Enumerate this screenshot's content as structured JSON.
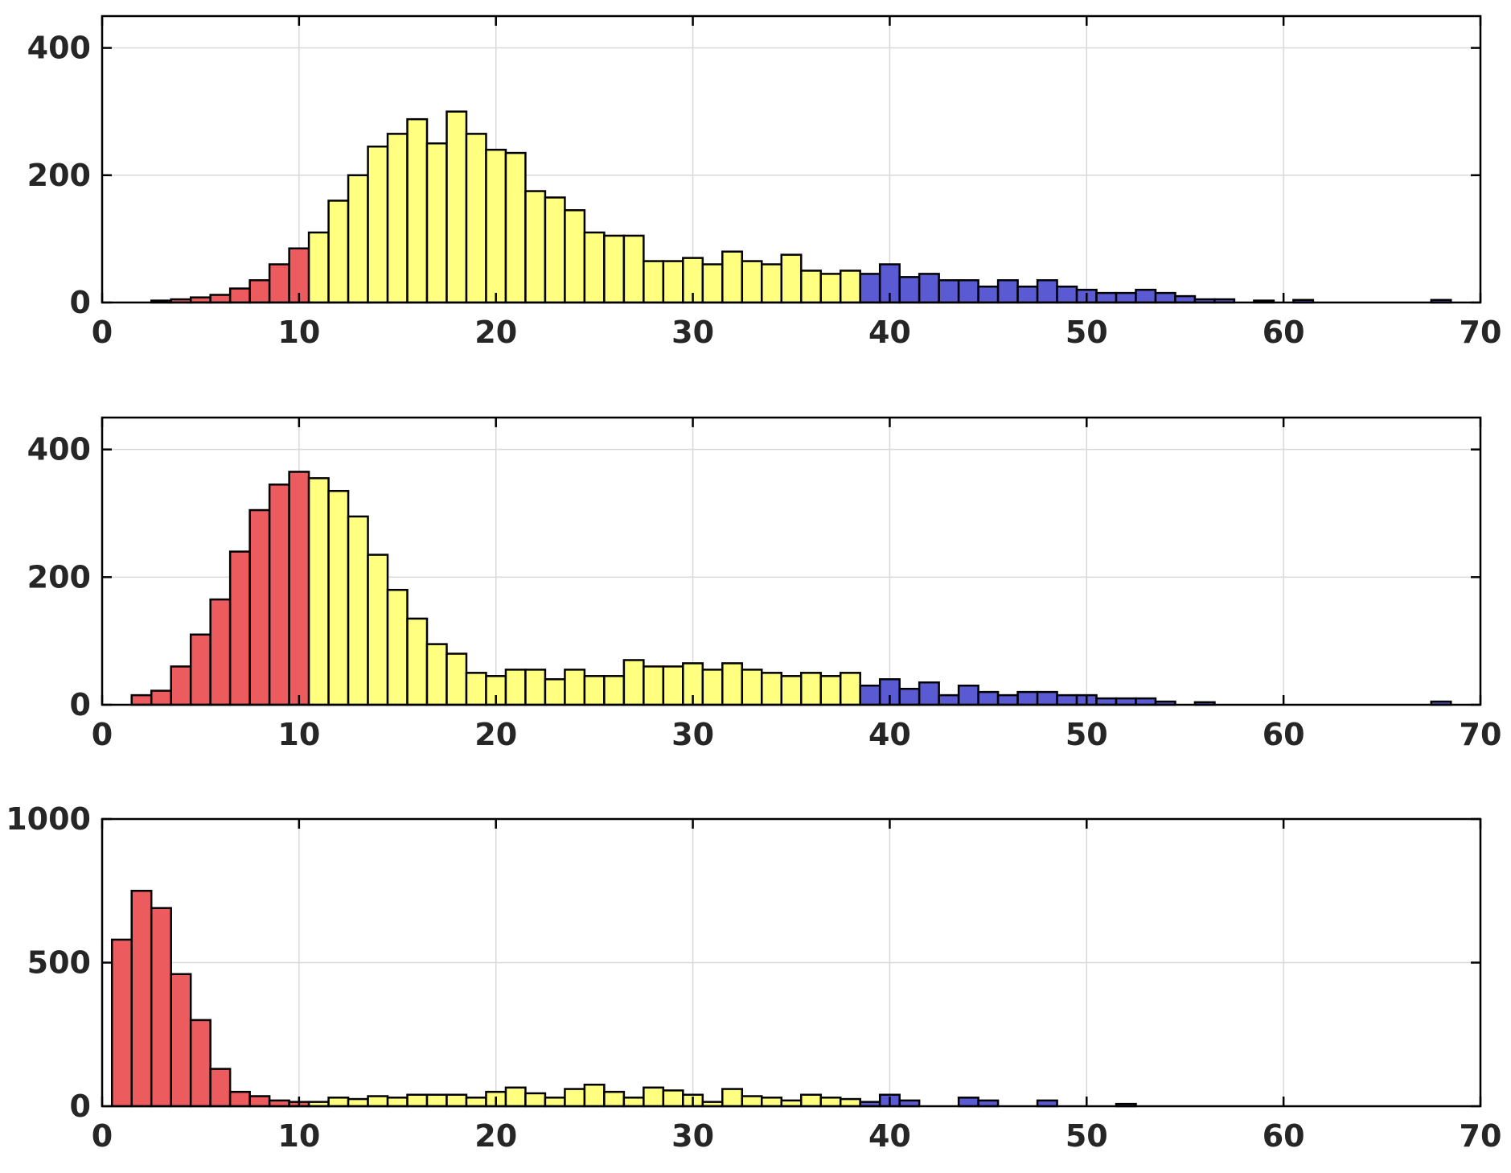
{
  "colors": {
    "low": "#ec5b5e",
    "mid": "#ffff80",
    "high": "#5a5ad2",
    "grid": "#d9d9d9",
    "axis": "#000000",
    "text": "#262626"
  },
  "chart_data": [
    {
      "type": "bar",
      "bin_width": 1,
      "xlim": [
        0,
        70
      ],
      "ylim": [
        0,
        450
      ],
      "xticks": [
        0,
        10,
        20,
        30,
        40,
        50,
        60,
        70
      ],
      "yticks": [
        0,
        200,
        400
      ],
      "xtick_labels": [
        "0",
        "10",
        "20",
        "30",
        "40",
        "50",
        "60",
        "70"
      ],
      "ytick_labels": [
        "0",
        "200",
        "400"
      ],
      "grid": true,
      "color_groups": [
        {
          "color": "low",
          "x_from": 0,
          "x_to": 11
        },
        {
          "color": "mid",
          "x_from": 11,
          "x_to": 39
        },
        {
          "color": "high",
          "x_from": 39,
          "x_to": 70
        }
      ],
      "bins": [
        {
          "x": 3,
          "y": 3
        },
        {
          "x": 4,
          "y": 5
        },
        {
          "x": 5,
          "y": 8
        },
        {
          "x": 6,
          "y": 12
        },
        {
          "x": 7,
          "y": 22
        },
        {
          "x": 8,
          "y": 35
        },
        {
          "x": 9,
          "y": 60
        },
        {
          "x": 10,
          "y": 85
        },
        {
          "x": 11,
          "y": 110
        },
        {
          "x": 12,
          "y": 160
        },
        {
          "x": 13,
          "y": 200
        },
        {
          "x": 14,
          "y": 245
        },
        {
          "x": 15,
          "y": 265
        },
        {
          "x": 16,
          "y": 288
        },
        {
          "x": 17,
          "y": 250
        },
        {
          "x": 18,
          "y": 300
        },
        {
          "x": 19,
          "y": 265
        },
        {
          "x": 20,
          "y": 240
        },
        {
          "x": 21,
          "y": 235
        },
        {
          "x": 22,
          "y": 175
        },
        {
          "x": 23,
          "y": 165
        },
        {
          "x": 24,
          "y": 145
        },
        {
          "x": 25,
          "y": 110
        },
        {
          "x": 26,
          "y": 105
        },
        {
          "x": 27,
          "y": 105
        },
        {
          "x": 28,
          "y": 65
        },
        {
          "x": 29,
          "y": 65
        },
        {
          "x": 30,
          "y": 70
        },
        {
          "x": 31,
          "y": 60
        },
        {
          "x": 32,
          "y": 80
        },
        {
          "x": 33,
          "y": 65
        },
        {
          "x": 34,
          "y": 60
        },
        {
          "x": 35,
          "y": 75
        },
        {
          "x": 36,
          "y": 50
        },
        {
          "x": 37,
          "y": 45
        },
        {
          "x": 38,
          "y": 50
        },
        {
          "x": 39,
          "y": 45
        },
        {
          "x": 40,
          "y": 60
        },
        {
          "x": 41,
          "y": 40
        },
        {
          "x": 42,
          "y": 45
        },
        {
          "x": 43,
          "y": 35
        },
        {
          "x": 44,
          "y": 35
        },
        {
          "x": 45,
          "y": 25
        },
        {
          "x": 46,
          "y": 35
        },
        {
          "x": 47,
          "y": 25
        },
        {
          "x": 48,
          "y": 35
        },
        {
          "x": 49,
          "y": 25
        },
        {
          "x": 50,
          "y": 20
        },
        {
          "x": 51,
          "y": 15
        },
        {
          "x": 52,
          "y": 15
        },
        {
          "x": 53,
          "y": 20
        },
        {
          "x": 54,
          "y": 15
        },
        {
          "x": 55,
          "y": 10
        },
        {
          "x": 56,
          "y": 5
        },
        {
          "x": 57,
          "y": 5
        },
        {
          "x": 59,
          "y": 3
        },
        {
          "x": 61,
          "y": 4
        },
        {
          "x": 68,
          "y": 4
        }
      ]
    },
    {
      "type": "bar",
      "bin_width": 1,
      "xlim": [
        0,
        70
      ],
      "ylim": [
        0,
        450
      ],
      "xticks": [
        0,
        10,
        20,
        30,
        40,
        50,
        60,
        70
      ],
      "yticks": [
        0,
        200,
        400
      ],
      "xtick_labels": [
        "0",
        "10",
        "20",
        "30",
        "40",
        "50",
        "60",
        "70"
      ],
      "ytick_labels": [
        "0",
        "200",
        "400"
      ],
      "grid": true,
      "color_groups": [
        {
          "color": "low",
          "x_from": 0,
          "x_to": 11
        },
        {
          "color": "mid",
          "x_from": 11,
          "x_to": 39
        },
        {
          "color": "high",
          "x_from": 39,
          "x_to": 70
        }
      ],
      "bins": [
        {
          "x": 2,
          "y": 15
        },
        {
          "x": 3,
          "y": 22
        },
        {
          "x": 4,
          "y": 60
        },
        {
          "x": 5,
          "y": 110
        },
        {
          "x": 6,
          "y": 165
        },
        {
          "x": 7,
          "y": 240
        },
        {
          "x": 8,
          "y": 305
        },
        {
          "x": 9,
          "y": 345
        },
        {
          "x": 10,
          "y": 365
        },
        {
          "x": 11,
          "y": 355
        },
        {
          "x": 12,
          "y": 335
        },
        {
          "x": 13,
          "y": 295
        },
        {
          "x": 14,
          "y": 235
        },
        {
          "x": 15,
          "y": 180
        },
        {
          "x": 16,
          "y": 135
        },
        {
          "x": 17,
          "y": 95
        },
        {
          "x": 18,
          "y": 80
        },
        {
          "x": 19,
          "y": 50
        },
        {
          "x": 20,
          "y": 45
        },
        {
          "x": 21,
          "y": 55
        },
        {
          "x": 22,
          "y": 55
        },
        {
          "x": 23,
          "y": 40
        },
        {
          "x": 24,
          "y": 55
        },
        {
          "x": 25,
          "y": 45
        },
        {
          "x": 26,
          "y": 45
        },
        {
          "x": 27,
          "y": 70
        },
        {
          "x": 28,
          "y": 60
        },
        {
          "x": 29,
          "y": 60
        },
        {
          "x": 30,
          "y": 65
        },
        {
          "x": 31,
          "y": 55
        },
        {
          "x": 32,
          "y": 65
        },
        {
          "x": 33,
          "y": 55
        },
        {
          "x": 34,
          "y": 50
        },
        {
          "x": 35,
          "y": 45
        },
        {
          "x": 36,
          "y": 50
        },
        {
          "x": 37,
          "y": 45
        },
        {
          "x": 38,
          "y": 50
        },
        {
          "x": 39,
          "y": 30
        },
        {
          "x": 40,
          "y": 40
        },
        {
          "x": 41,
          "y": 25
        },
        {
          "x": 42,
          "y": 35
        },
        {
          "x": 43,
          "y": 15
        },
        {
          "x": 44,
          "y": 30
        },
        {
          "x": 45,
          "y": 20
        },
        {
          "x": 46,
          "y": 15
        },
        {
          "x": 47,
          "y": 20
        },
        {
          "x": 48,
          "y": 20
        },
        {
          "x": 49,
          "y": 15
        },
        {
          "x": 50,
          "y": 15
        },
        {
          "x": 51,
          "y": 10
        },
        {
          "x": 52,
          "y": 10
        },
        {
          "x": 53,
          "y": 10
        },
        {
          "x": 54,
          "y": 5
        },
        {
          "x": 56,
          "y": 4
        },
        {
          "x": 68,
          "y": 5
        }
      ]
    },
    {
      "type": "bar",
      "bin_width": 1,
      "xlim": [
        0,
        70
      ],
      "ylim": [
        0,
        1000
      ],
      "xticks": [
        0,
        10,
        20,
        30,
        40,
        50,
        60,
        70
      ],
      "yticks": [
        0,
        500,
        1000
      ],
      "xtick_labels": [
        "0",
        "10",
        "20",
        "30",
        "40",
        "50",
        "60",
        "70"
      ],
      "ytick_labels": [
        "0",
        "500",
        "1000"
      ],
      "grid": true,
      "color_groups": [
        {
          "color": "low",
          "x_from": 0,
          "x_to": 11
        },
        {
          "color": "mid",
          "x_from": 11,
          "x_to": 39
        },
        {
          "color": "high",
          "x_from": 39,
          "x_to": 70
        }
      ],
      "bins": [
        {
          "x": 1,
          "y": 580
        },
        {
          "x": 2,
          "y": 750
        },
        {
          "x": 3,
          "y": 690
        },
        {
          "x": 4,
          "y": 460
        },
        {
          "x": 5,
          "y": 300
        },
        {
          "x": 6,
          "y": 130
        },
        {
          "x": 7,
          "y": 50
        },
        {
          "x": 8,
          "y": 35
        },
        {
          "x": 9,
          "y": 20
        },
        {
          "x": 10,
          "y": 15
        },
        {
          "x": 11,
          "y": 15
        },
        {
          "x": 12,
          "y": 30
        },
        {
          "x": 13,
          "y": 25
        },
        {
          "x": 14,
          "y": 35
        },
        {
          "x": 15,
          "y": 30
        },
        {
          "x": 16,
          "y": 40
        },
        {
          "x": 17,
          "y": 40
        },
        {
          "x": 18,
          "y": 40
        },
        {
          "x": 19,
          "y": 30
        },
        {
          "x": 20,
          "y": 50
        },
        {
          "x": 21,
          "y": 65
        },
        {
          "x": 22,
          "y": 45
        },
        {
          "x": 23,
          "y": 30
        },
        {
          "x": 24,
          "y": 60
        },
        {
          "x": 25,
          "y": 75
        },
        {
          "x": 26,
          "y": 50
        },
        {
          "x": 27,
          "y": 30
        },
        {
          "x": 28,
          "y": 65
        },
        {
          "x": 29,
          "y": 55
        },
        {
          "x": 30,
          "y": 40
        },
        {
          "x": 31,
          "y": 15
        },
        {
          "x": 32,
          "y": 60
        },
        {
          "x": 33,
          "y": 35
        },
        {
          "x": 34,
          "y": 30
        },
        {
          "x": 35,
          "y": 20
        },
        {
          "x": 36,
          "y": 40
        },
        {
          "x": 37,
          "y": 30
        },
        {
          "x": 38,
          "y": 25
        },
        {
          "x": 39,
          "y": 15
        },
        {
          "x": 40,
          "y": 40
        },
        {
          "x": 41,
          "y": 20
        },
        {
          "x": 44,
          "y": 30
        },
        {
          "x": 45,
          "y": 20
        },
        {
          "x": 48,
          "y": 20
        },
        {
          "x": 52,
          "y": 8
        }
      ]
    }
  ]
}
